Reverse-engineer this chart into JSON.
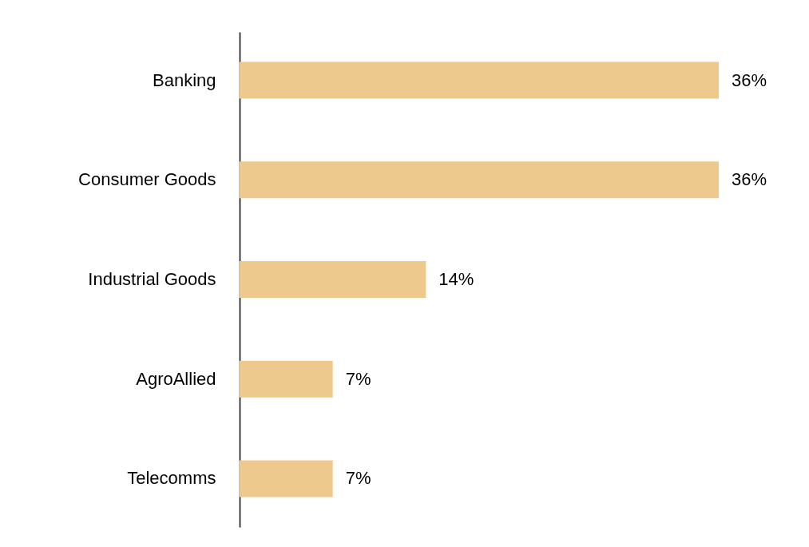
{
  "chart_data": {
    "type": "bar",
    "orientation": "horizontal",
    "categories": [
      "Banking",
      "Consumer Goods",
      "Industrial Goods",
      "AgroAllied",
      "Telecomms"
    ],
    "values": [
      36,
      36,
      14,
      7,
      7
    ],
    "color": "#edc98d",
    "value_labels": [
      "36%",
      "36%",
      "14%",
      "7%",
      "7%"
    ]
  }
}
